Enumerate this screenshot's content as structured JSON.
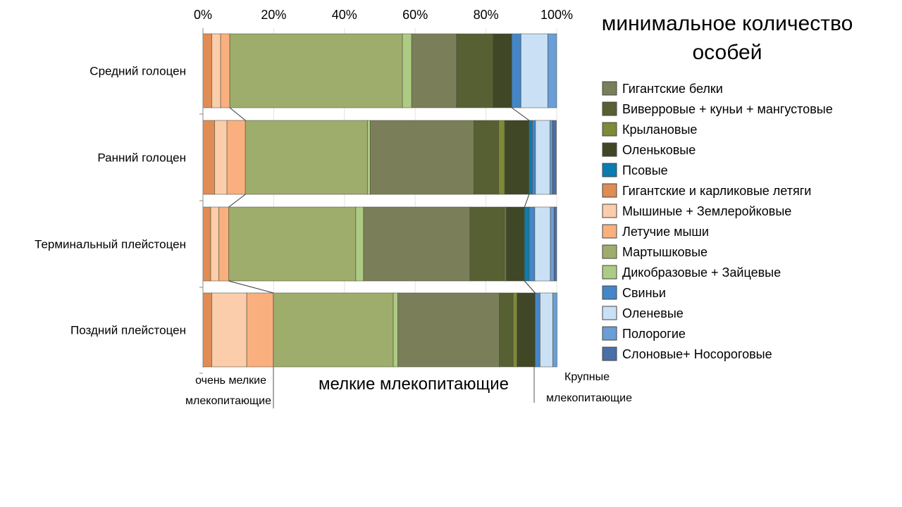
{
  "chart_data": {
    "type": "bar",
    "orientation": "horizontal",
    "stacked": true,
    "normalized": true,
    "title": "минимальное количество особей",
    "xlim": [
      0,
      100
    ],
    "xticks": [
      "0%",
      "20%",
      "40%",
      "60%",
      "80%",
      "100%"
    ],
    "grid": true,
    "legend_position": "right",
    "categories": [
      "Средний голоцен",
      "Ранний голоцен",
      "Терминальный плейстоцен",
      "Поздний плейстоцен"
    ],
    "series": [
      {
        "name": "Гигантские и карликовые летяги",
        "color": "#E08C55",
        "values": [
          2.5,
          3.3,
          2.2,
          2.5
        ]
      },
      {
        "name": "Мышиные + Землеройковые",
        "color": "#FBCDAA",
        "values": [
          2.5,
          3.5,
          2.3,
          9.9
        ]
      },
      {
        "name": "Летучие мыши",
        "color": "#F9B07E",
        "values": [
          2.6,
          5.2,
          2.8,
          7.5
        ]
      },
      {
        "name": "Мартышковые",
        "color": "#9FAD6C",
        "values": [
          48.8,
          34.5,
          35.9,
          33.9
        ]
      },
      {
        "name": "Дикобразовые + Зайцевые",
        "color": "#AECB84",
        "values": [
          2.6,
          0.8,
          2.2,
          1.3
        ]
      },
      {
        "name": "Гигантские белки",
        "color": "#7A7F59",
        "values": [
          12.7,
          29.3,
          30.1,
          28.7
        ]
      },
      {
        "name": "Виверровые + куньи + мангустовые",
        "color": "#576033",
        "values": [
          10.3,
          7.0,
          9.8,
          3.9
        ]
      },
      {
        "name": "Крылановые",
        "color": "#7E8A36",
        "values": [
          0,
          1.7,
          0.4,
          1.1
        ]
      },
      {
        "name": "Оленьковые",
        "color": "#3F4726",
        "values": [
          5.3,
          6.9,
          5.2,
          5.1
        ]
      },
      {
        "name": "Псовые",
        "color": "#0A7DB0",
        "values": [
          0,
          0.9,
          1.3,
          0
        ]
      },
      {
        "name": "Свиньи",
        "color": "#4486C8",
        "values": [
          2.6,
          0.9,
          1.6,
          1.4
        ]
      },
      {
        "name": "Оленевые",
        "color": "#CAE1F5",
        "values": [
          7.6,
          4.1,
          4.4,
          3.6
        ]
      },
      {
        "name": "Полорогие",
        "color": "#6A9ED6",
        "values": [
          2.5,
          0.7,
          1.1,
          1.2
        ]
      },
      {
        "name": "Слоновые+ Носороговые",
        "color": "#4A6EA8",
        "values": [
          0,
          1.1,
          0.7,
          0
        ]
      }
    ],
    "legend_order": [
      5,
      6,
      7,
      8,
      9,
      0,
      1,
      2,
      3,
      4,
      10,
      11,
      12,
      13
    ],
    "title_lines": [
      "минимальное количество",
      "особей"
    ],
    "annotations": {
      "very_small_1": "очень мелкие",
      "very_small_2": "млекопитающие",
      "small": "мелкие млекопитающие",
      "large_1": "Крупные",
      "large_2": "млекопитающие"
    }
  }
}
